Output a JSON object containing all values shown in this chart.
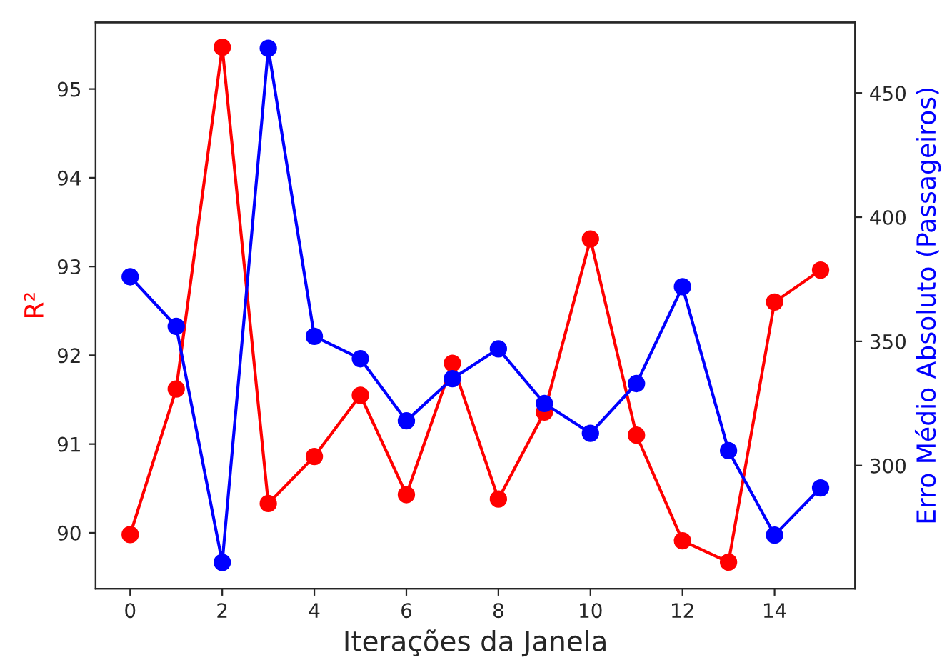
{
  "chart_data": {
    "type": "line",
    "xlabel": "Iterações da Janela",
    "ylabel": "R²",
    "y2label": "Erro Médio Absoluto (Passageiros)",
    "x": [
      0,
      1,
      2,
      3,
      4,
      5,
      6,
      7,
      8,
      9,
      10,
      11,
      12,
      13,
      14,
      15
    ],
    "series": [
      {
        "color": "#ff0000",
        "values": [
          89.98,
          91.62,
          95.47,
          90.33,
          90.86,
          91.55,
          90.43,
          91.91,
          90.38,
          91.36,
          93.31,
          91.1,
          89.91,
          89.67,
          92.6,
          92.96
        ]
      },
      {
        "color": "#0000ff",
        "axis": "y2",
        "values": [
          376,
          356,
          261,
          468,
          352,
          343,
          318,
          335,
          347,
          325,
          313,
          333,
          372,
          306,
          272,
          291
        ]
      }
    ],
    "xlim": [
      -0.75,
      15.75
    ],
    "xticks": [
      0,
      2,
      4,
      6,
      8,
      10,
      12,
      14
    ],
    "ylim": [
      89.37,
      95.75
    ],
    "yticks": [
      90,
      91,
      92,
      93,
      94,
      95
    ],
    "y2lim": [
      250.4,
      478.4
    ],
    "y2ticks": [
      300,
      350,
      400,
      450
    ],
    "marker": "circle",
    "line_style": "solid",
    "grid": false,
    "legend": false
  }
}
